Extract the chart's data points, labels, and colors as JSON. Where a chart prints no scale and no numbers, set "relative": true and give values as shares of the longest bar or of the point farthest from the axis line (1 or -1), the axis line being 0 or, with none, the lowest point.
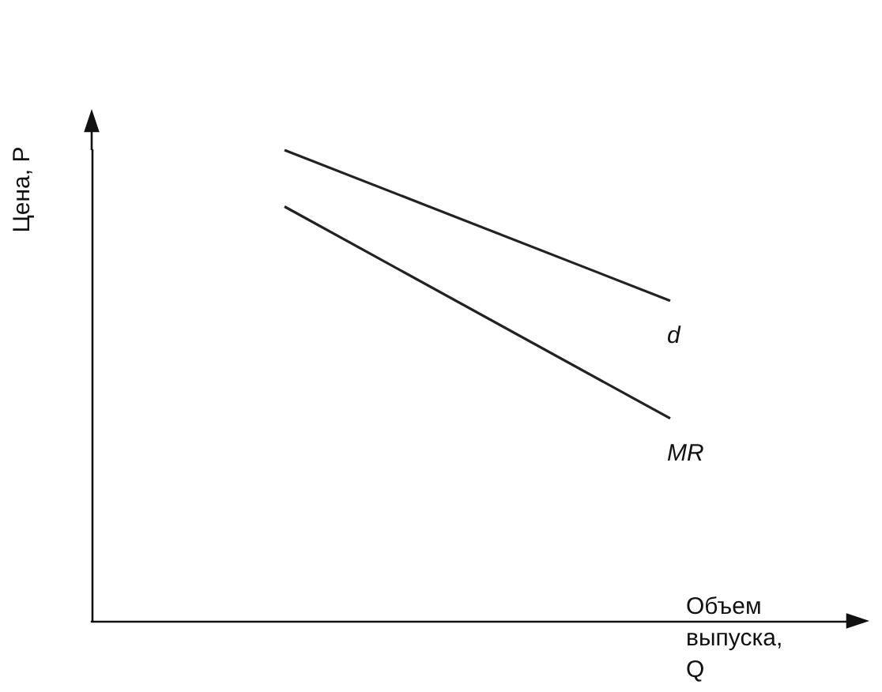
{
  "chart_data": {
    "type": "line",
    "relative": true,
    "xlabel": "Объем выпуска, Q",
    "ylabel": "Цена, P",
    "categories": [
      null,
      null
    ],
    "series": [
      {
        "name": "d",
        "color": "#222222",
        "values": [
          1,
          0.68
        ]
      },
      {
        "name": "MR",
        "color": "#222222",
        "values": [
          0.88,
          0.43
        ]
      }
    ],
    "grid": false,
    "legend": false,
    "marker": "none",
    "line_style": "solid"
  }
}
